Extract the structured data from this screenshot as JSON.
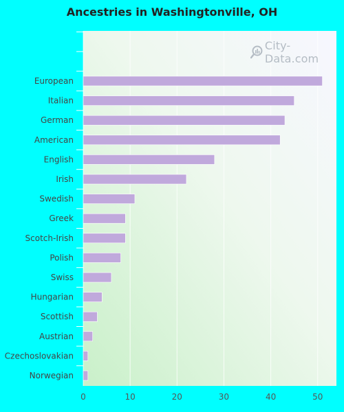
{
  "chart_data": {
    "type": "bar",
    "orientation": "horizontal",
    "title": "Ancestries in Washingtonville, OH",
    "categories": [
      "European",
      "Italian",
      "German",
      "American",
      "English",
      "Irish",
      "Swedish",
      "Greek",
      "Scotch-Irish",
      "Polish",
      "Swiss",
      "Hungarian",
      "Scottish",
      "Austrian",
      "Czechoslovakian",
      "Norwegian"
    ],
    "values": [
      51,
      45,
      43,
      42,
      28,
      22,
      11,
      9,
      9,
      8,
      6,
      4,
      3,
      2,
      1,
      1
    ],
    "xlim": [
      0,
      54
    ],
    "xticks": [
      "0",
      "10",
      "20",
      "30",
      "40",
      "50"
    ],
    "xlabel": "",
    "ylabel": "",
    "grid": true,
    "bar_color": "#c0a9dc",
    "background_color": "#00ffff"
  },
  "watermark": {
    "text": "City-Data.com",
    "icon": "magnifier-icon"
  }
}
